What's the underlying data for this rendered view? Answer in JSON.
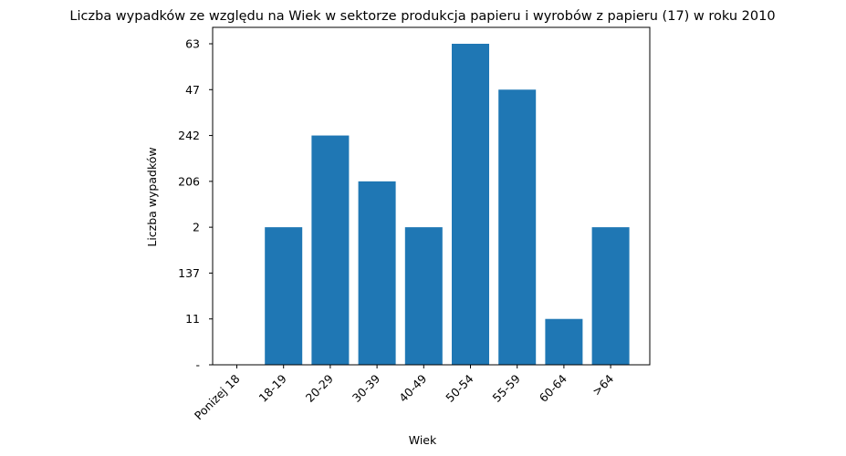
{
  "chart_data": {
    "type": "bar",
    "title": "Liczba wypadków ze względu na Wiek w sektorze produkcja papieru i wyrobów z papieru  (17)   w roku 2010",
    "xlabel": "Wiek",
    "ylabel": "Liczba wypadków",
    "categories": [
      "Ponizej 18",
      "18-19",
      "20-29",
      "30-39",
      "40-49",
      "50-54",
      "55-59",
      "60-64",
      ">64"
    ],
    "y_tick_labels": [
      "-",
      "11",
      "137",
      "2",
      "206",
      "242",
      "47",
      "63"
    ],
    "values": [
      "-",
      "2",
      "242",
      "206",
      "2",
      "63",
      "47",
      "11",
      "2"
    ],
    "bar_color": "#1f77b4",
    "grid": false,
    "legend": "none"
  }
}
